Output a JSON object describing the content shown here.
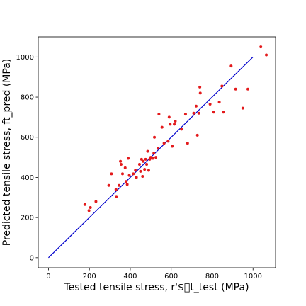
{
  "chart_data": {
    "type": "scatter",
    "title": "",
    "xlabel": "Tested tensile stress, r'$\u0000t_test (MPa)",
    "ylabel": "Predicted tensile stress, ft_pred (MPa)",
    "xlim": [
      -50,
      1110
    ],
    "ylim": [
      -50,
      1100
    ],
    "xticks": [
      0,
      200,
      400,
      600,
      800,
      1000
    ],
    "yticks": [
      0,
      200,
      400,
      600,
      800,
      1000
    ],
    "grid": false,
    "colors": {
      "points": "#e31a1c",
      "line": "#0000cc",
      "axes": "#000000"
    },
    "reference_line": {
      "x": [
        0,
        1000
      ],
      "y": [
        0,
        1000
      ]
    },
    "series": [
      {
        "points": [
          [
            178,
            265
          ],
          [
            198,
            235
          ],
          [
            205,
            250
          ],
          [
            232,
            280
          ],
          [
            295,
            360
          ],
          [
            308,
            418
          ],
          [
            330,
            340
          ],
          [
            332,
            305
          ],
          [
            345,
            360
          ],
          [
            352,
            480
          ],
          [
            355,
            465
          ],
          [
            362,
            418
          ],
          [
            375,
            448
          ],
          [
            380,
            380
          ],
          [
            385,
            365
          ],
          [
            390,
            495
          ],
          [
            395,
            410
          ],
          [
            415,
            418
          ],
          [
            425,
            435
          ],
          [
            430,
            400
          ],
          [
            445,
            465
          ],
          [
            450,
            430
          ],
          [
            455,
            490
          ],
          [
            460,
            405
          ],
          [
            463,
            480
          ],
          [
            470,
            440
          ],
          [
            475,
            490
          ],
          [
            480,
            465
          ],
          [
            485,
            530
          ],
          [
            490,
            435
          ],
          [
            495,
            490
          ],
          [
            500,
            500
          ],
          [
            510,
            495
          ],
          [
            515,
            520
          ],
          [
            518,
            600
          ],
          [
            525,
            500
          ],
          [
            535,
            545
          ],
          [
            540,
            715
          ],
          [
            555,
            650
          ],
          [
            565,
            570
          ],
          [
            585,
            580
          ],
          [
            590,
            700
          ],
          [
            595,
            665
          ],
          [
            605,
            555
          ],
          [
            615,
            665
          ],
          [
            620,
            680
          ],
          [
            650,
            640
          ],
          [
            670,
            715
          ],
          [
            680,
            570
          ],
          [
            710,
            720
          ],
          [
            722,
            755
          ],
          [
            728,
            610
          ],
          [
            735,
            720
          ],
          [
            740,
            850
          ],
          [
            742,
            820
          ],
          [
            790,
            765
          ],
          [
            808,
            725
          ],
          [
            835,
            775
          ],
          [
            848,
            855
          ],
          [
            855,
            725
          ],
          [
            893,
            955
          ],
          [
            915,
            840
          ],
          [
            950,
            745
          ],
          [
            975,
            840
          ],
          [
            1038,
            1050
          ],
          [
            1065,
            1010
          ]
        ]
      }
    ]
  }
}
